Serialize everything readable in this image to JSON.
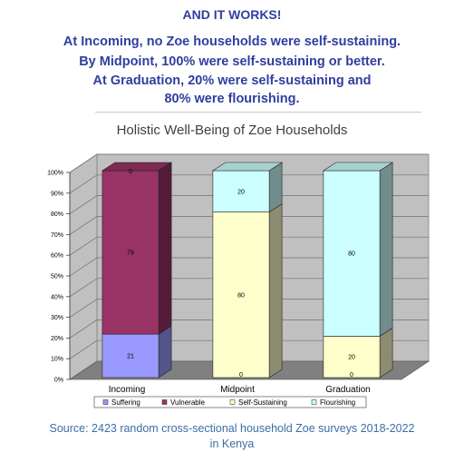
{
  "header": {
    "title": "AND IT WORKS!",
    "lines": [
      "At Incoming, no Zoe households were self-sustaining.",
      "By Midpoint, 100% were self-sustaining or better.",
      "At Graduation, 20% were self-sustaining and",
      "80% were flourishing."
    ]
  },
  "chart_data": {
    "type": "bar",
    "stacked": true,
    "three_d": true,
    "title": "Holistic Well-Being of Zoe Households",
    "categories": [
      "Incoming",
      "Midpoint",
      "Graduation"
    ],
    "series": [
      {
        "name": "Suffering",
        "values": [
          21,
          0,
          0
        ],
        "labels": [
          "21",
          "0",
          "0"
        ],
        "color": "#9999ff"
      },
      {
        "name": "Vulnerable",
        "values": [
          79,
          0,
          0
        ],
        "labels": [
          "79",
          "",
          ""
        ],
        "color": "#993366"
      },
      {
        "name": "Self-Sustaining",
        "values": [
          0,
          80,
          20
        ],
        "labels": [
          "",
          "80",
          "20"
        ],
        "color": "#ffffcc"
      },
      {
        "name": "Flourishing",
        "values": [
          0,
          20,
          80
        ],
        "labels": [
          "0",
          "20",
          "80"
        ],
        "color": "#ccffff"
      }
    ],
    "yticks": [
      "0%",
      "10%",
      "20%",
      "30%",
      "40%",
      "50%",
      "60%",
      "70%",
      "80%",
      "90%",
      "100%"
    ],
    "ylim": [
      0,
      100
    ],
    "grid": true,
    "legend_position": "bottom",
    "colors": {
      "wall": "#c0c0c0",
      "floor": "#808080"
    }
  },
  "source": {
    "line1": "Source: 2423 random cross-sectional household Zoe surveys 2018-2022",
    "line2": "in Kenya"
  }
}
